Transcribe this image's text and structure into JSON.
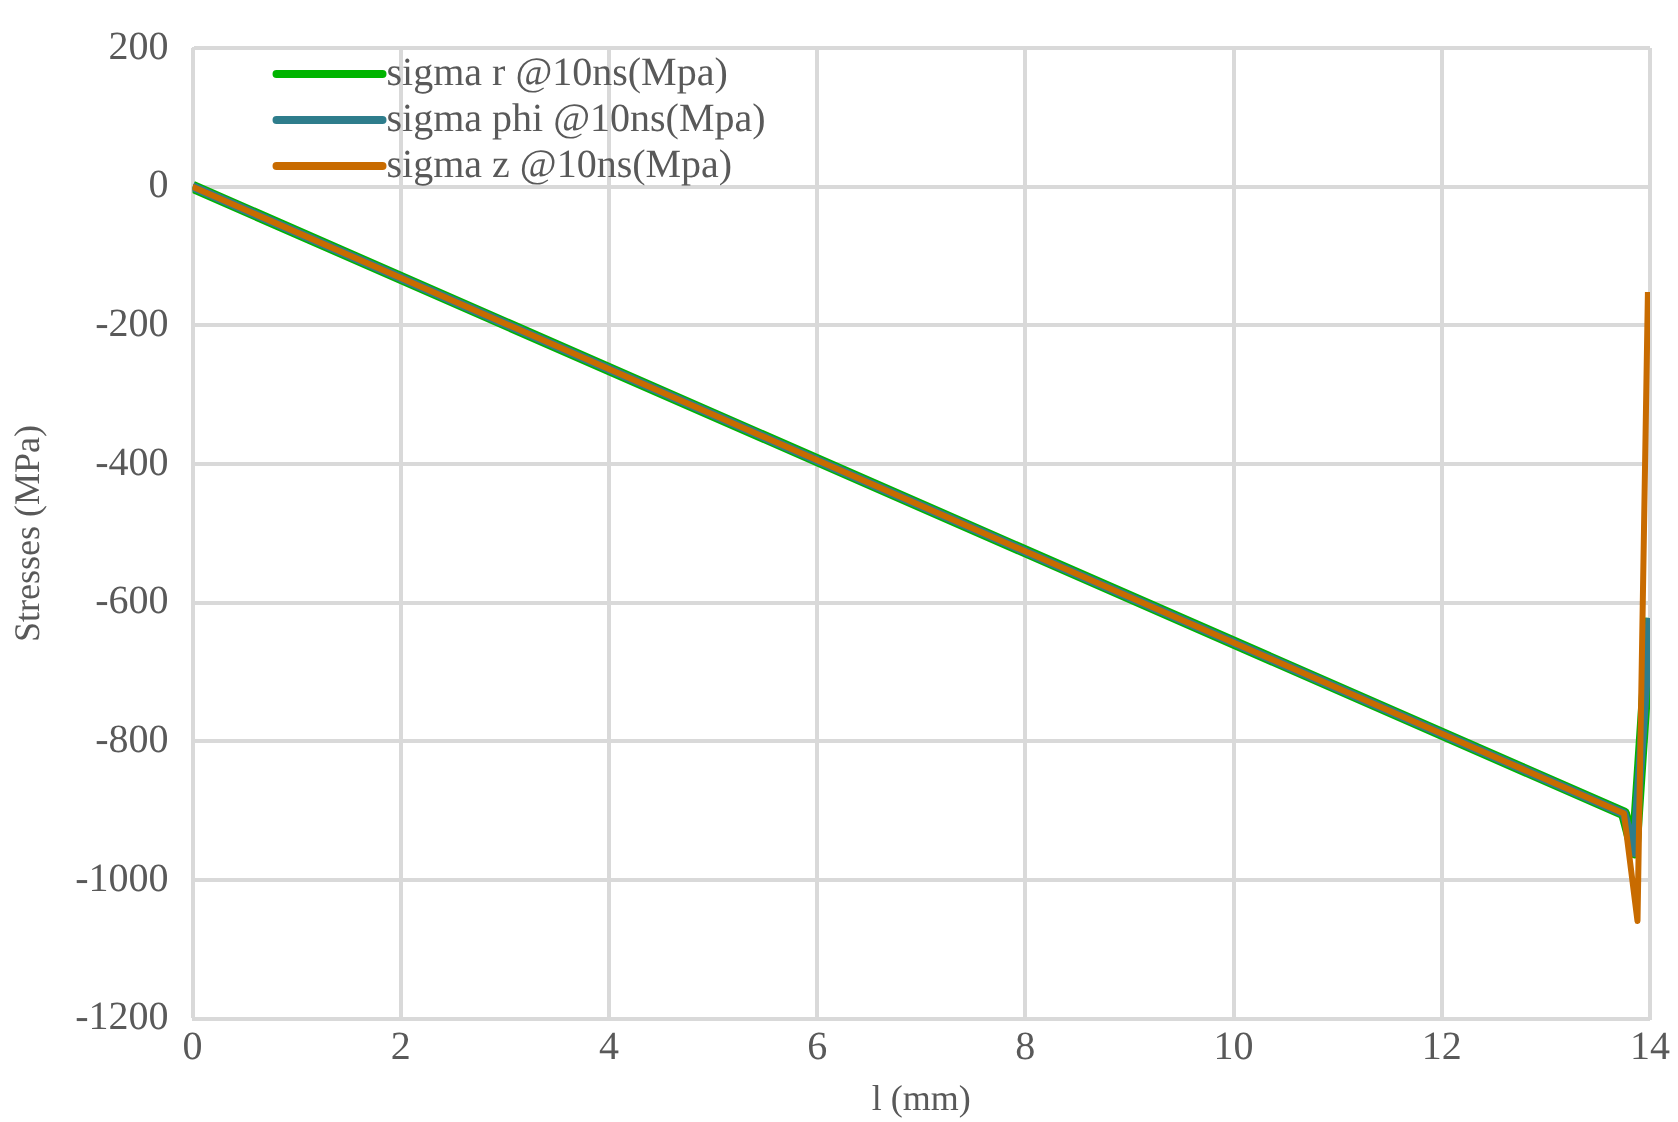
{
  "chart_data": {
    "type": "line",
    "xlabel": "l (mm)",
    "ylabel": "Stresses (MPa)",
    "xlim": [
      0,
      14
    ],
    "xticks": [
      0,
      2,
      4,
      6,
      8,
      10,
      12,
      14
    ],
    "ylim": [
      -1200,
      200
    ],
    "yticks": [
      -1200,
      -1000,
      -800,
      -600,
      -400,
      -200,
      0,
      200
    ],
    "grid": true,
    "legend": "top left",
    "marker": "none",
    "line_style": "solid",
    "series": [
      {
        "name": "sigma r @10ns(Mpa)",
        "color": "#00b400",
        "x": [
          0,
          13.75,
          13.85,
          14
        ],
        "values": [
          0,
          -904,
          -960,
          -622
        ]
      },
      {
        "name": "sigma phi @10ns(Mpa)",
        "color": "#2e7d8c",
        "x": [
          0,
          13.75,
          13.85,
          14
        ],
        "values": [
          0,
          -904,
          -960,
          -622
        ]
      },
      {
        "name": "sigma z @10ns(Mpa)",
        "color": "#c86b00",
        "x": [
          0,
          13.75,
          13.88,
          13.98
        ],
        "values": [
          0,
          -904,
          -1059,
          -152
        ]
      }
    ]
  }
}
